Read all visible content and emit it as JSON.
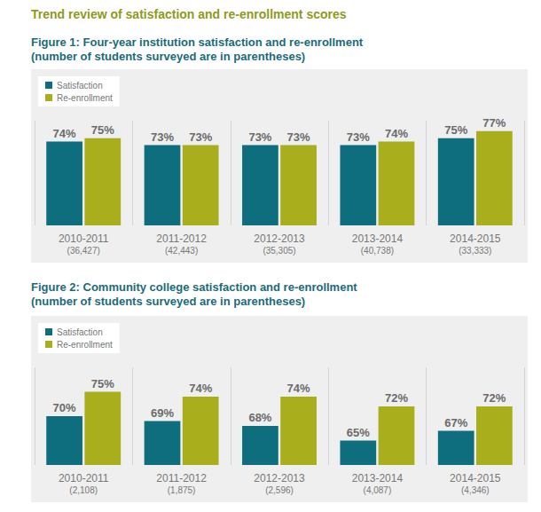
{
  "title": "Trend review of satisfaction and re-enrollment scores",
  "chart_data": [
    {
      "type": "bar",
      "title": "Figure 1: Four-year institution satisfaction and re-enrollment",
      "subtitle": "(number of students surveyed are in parentheses)",
      "categories": [
        "2010-2011",
        "2011-2012",
        "2012-2013",
        "2013-2014",
        "2014-2015"
      ],
      "students_surveyed": [
        "(36,427)",
        "(42,443)",
        "(35,305)",
        "(40,738)",
        "(33,333)"
      ],
      "series": [
        {
          "name": "Satisfaction",
          "color": "#0f6e7d",
          "values": [
            74,
            73,
            73,
            73,
            75
          ],
          "value_labels": [
            "74%",
            "73%",
            "73%",
            "73%",
            "75%"
          ]
        },
        {
          "name": "Re-enrollment",
          "color": "#a8ae1c",
          "values": [
            75,
            73,
            73,
            74,
            77
          ],
          "value_labels": [
            "75%",
            "73%",
            "73%",
            "74%",
            "77%"
          ]
        }
      ],
      "ylim": [
        50,
        80
      ],
      "yticks": [
        50,
        80
      ],
      "grid": false,
      "legend": "upper left",
      "data_labels": true,
      "tick_labels": "x"
    },
    {
      "type": "bar",
      "title": "Figure 2: Community college satisfaction and re-enrollment",
      "subtitle": "(number of students surveyed are in parentheses)",
      "categories": [
        "2010-2011",
        "2011-2012",
        "2012-2013",
        "2013-2014",
        "2014-2015"
      ],
      "students_surveyed": [
        "(2,108)",
        "(1,875)",
        "(2,596)",
        "(4,087)",
        "(4,346)"
      ],
      "series": [
        {
          "name": "Satisfaction",
          "color": "#0f6e7d",
          "values": [
            70,
            69,
            68,
            65,
            67
          ],
          "value_labels": [
            "70%",
            "69%",
            "68%",
            "65%",
            "67%"
          ]
        },
        {
          "name": "Re-enrollment",
          "color": "#a8ae1c",
          "values": [
            75,
            74,
            74,
            72,
            72
          ],
          "value_labels": [
            "75%",
            "74%",
            "74%",
            "72%",
            "72%"
          ]
        }
      ],
      "ylim": [
        60,
        80
      ],
      "yticks": [
        60,
        80
      ],
      "grid": false,
      "legend": "upper left",
      "data_labels": true,
      "tick_labels": "x"
    }
  ]
}
